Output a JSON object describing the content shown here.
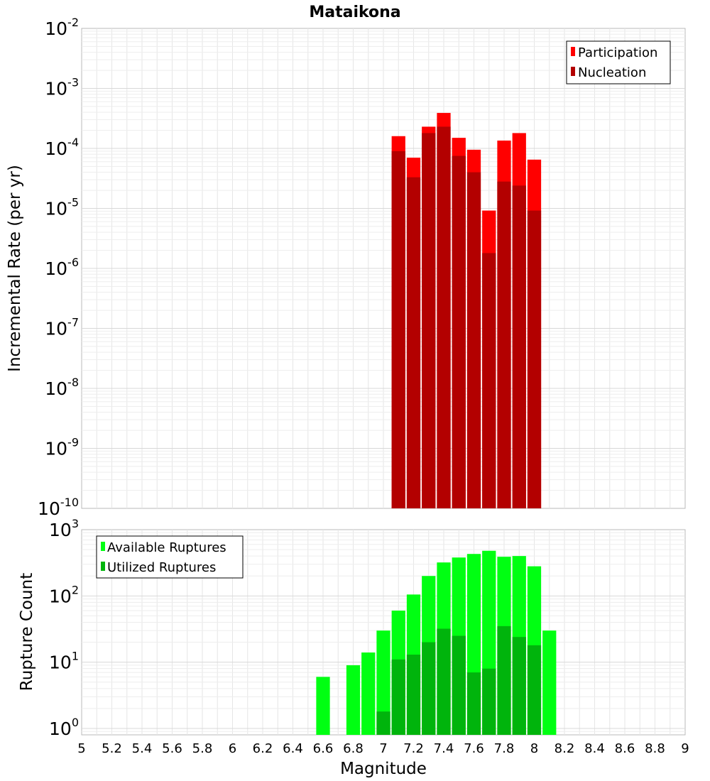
{
  "chart_data": [
    {
      "type": "bar",
      "title": "Mataikona",
      "ylabel": "Incremental Rate (per yr)",
      "xlabel": "",
      "yscale": "log",
      "ylim": [
        1e-10,
        0.01
      ],
      "xlim": [
        5,
        9
      ],
      "bar_width": 0.1,
      "grid": true,
      "legend_position": "top-right",
      "ytick_labels": [
        {
          "base": "10",
          "exp": "-10"
        },
        {
          "base": "10",
          "exp": "-9"
        },
        {
          "base": "10",
          "exp": "-8"
        },
        {
          "base": "10",
          "exp": "-7"
        },
        {
          "base": "10",
          "exp": "-6"
        },
        {
          "base": "10",
          "exp": "-5"
        },
        {
          "base": "10",
          "exp": "-4"
        },
        {
          "base": "10",
          "exp": "-3"
        },
        {
          "base": "10",
          "exp": "-2"
        }
      ],
      "x": [
        7.1,
        7.2,
        7.3,
        7.4,
        7.5,
        7.6,
        7.7,
        7.8,
        7.9,
        8.0
      ],
      "series": [
        {
          "name": "Participation",
          "color": "#ff0000",
          "values": [
            0.00016,
            7e-05,
            0.00023,
            0.00039,
            0.00015,
            9.5e-05,
            9.2e-06,
            0.000135,
            0.00018,
            6.5e-05
          ]
        },
        {
          "name": "Nucleation",
          "color": "#b30000",
          "values": [
            9e-05,
            3.3e-05,
            0.00018,
            0.00023,
            7.5e-05,
            4e-05,
            1.8e-06,
            2.8e-05,
            2.4e-05,
            9.2e-06
          ]
        }
      ]
    },
    {
      "type": "bar",
      "title": "",
      "ylabel": "Rupture Count",
      "xlabel": "Magnitude",
      "yscale": "log",
      "ylim": [
        0.8,
        1000
      ],
      "xlim": [
        5,
        9
      ],
      "bar_width": 0.1,
      "grid": true,
      "legend_position": "top-left",
      "ytick_labels": [
        {
          "base": "10",
          "exp": "0"
        },
        {
          "base": "10",
          "exp": "1"
        },
        {
          "base": "10",
          "exp": "2"
        },
        {
          "base": "10",
          "exp": "3"
        }
      ],
      "xtick_labels": [
        "5",
        "5.2",
        "5.4",
        "5.6",
        "5.8",
        "6",
        "6.2",
        "6.4",
        "6.6",
        "6.8",
        "7",
        "7.2",
        "7.4",
        "7.6",
        "7.8",
        "8",
        "8.2",
        "8.4",
        "8.6",
        "8.8",
        "9"
      ],
      "series": [
        {
          "name": "Available Ruptures",
          "color": "#00ff12",
          "x": [
            6.6,
            6.8,
            6.9,
            7.0,
            7.1,
            7.2,
            7.3,
            7.4,
            7.5,
            7.6,
            7.7,
            7.8,
            7.9,
            8.0,
            8.1,
            8.2
          ],
          "values": [
            6,
            9,
            14,
            30,
            60,
            105,
            200,
            320,
            380,
            430,
            480,
            390,
            400,
            280,
            30,
            0
          ]
        },
        {
          "name": "Utilized Ruptures",
          "color": "#00b40c",
          "x": [
            7.0,
            7.1,
            7.2,
            7.3,
            7.4,
            7.5,
            7.6,
            7.7,
            7.8,
            7.9,
            8.0
          ],
          "values": [
            1.8,
            11,
            13,
            20,
            32,
            25,
            7,
            8,
            35,
            24,
            18
          ]
        }
      ]
    }
  ]
}
